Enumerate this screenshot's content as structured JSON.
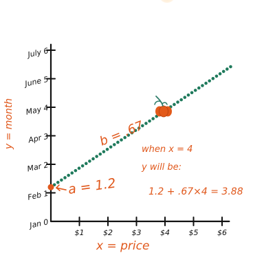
{
  "chart_data": {
    "type": "scatter",
    "title": "",
    "xlabel": "x = price",
    "ylabel": "y = month",
    "x_ticks": [
      {
        "value": 1,
        "label": "$1"
      },
      {
        "value": 2,
        "label": "$2"
      },
      {
        "value": 3,
        "label": "$3"
      },
      {
        "value": 4,
        "label": "$4"
      },
      {
        "value": 5,
        "label": "$5"
      },
      {
        "value": 6,
        "label": "$6"
      }
    ],
    "y_ticks": [
      {
        "value": 0,
        "label": "Jan 0"
      },
      {
        "value": 1,
        "label": "Feb 1"
      },
      {
        "value": 2,
        "label": "Mar 2"
      },
      {
        "value": 3,
        "label": "Apr 3"
      },
      {
        "value": 4,
        "label": "May 4"
      },
      {
        "value": 5,
        "label": "June 5"
      },
      {
        "value": 6,
        "label": "July 6"
      }
    ],
    "xlim": [
      0,
      6.2
    ],
    "ylim": [
      0,
      6.2
    ],
    "regression_line": {
      "intercept": 1.2,
      "slope": 0.67,
      "x_start": 0,
      "x_end": 6.3,
      "dot_count": 52
    },
    "highlighted_points": [
      {
        "name": "intercept-point",
        "x": 0,
        "y": 1.2
      },
      {
        "name": "prediction-point",
        "x": 4,
        "y": 3.88
      }
    ],
    "annotations": {
      "intercept": "a = 1.2",
      "slope": "b = .67",
      "prediction_line1": "when x = 4",
      "prediction_line2": "y will be:",
      "prediction_formula": "1.2 + .67×4 = 3.88"
    },
    "colors": {
      "axis": "#111111",
      "dots": "#1f7a5c",
      "accent": "#e0581c",
      "pumpkin": "#e35a1a",
      "stem": "#2f7d6a"
    }
  }
}
